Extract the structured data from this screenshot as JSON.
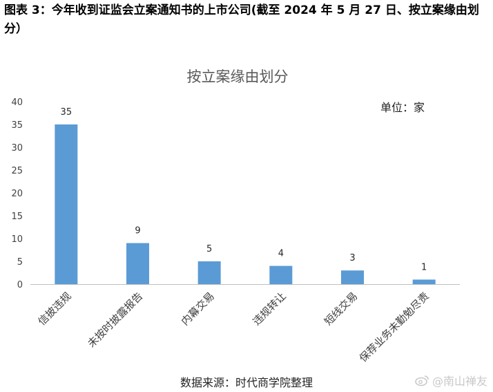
{
  "figure": {
    "title": "图表 3：今年收到证监会立案通知书的上市公司(截至 2024 年 5 月 27 日、按立案缘由划分）",
    "source": "数据来源：时代商学院整理",
    "watermark": "@南山禅友"
  },
  "chart_data": {
    "type": "bar",
    "title": "按立案缘由划分",
    "unit_note": "单位：家",
    "categories": [
      "信披违规",
      "未按时披露报告",
      "内幕交易",
      "违规转让",
      "短线交易",
      "保荐业务未勤勉尽责"
    ],
    "values": [
      35,
      9,
      5,
      4,
      3,
      1
    ],
    "data_labels": [
      "35",
      "9",
      "5",
      "4",
      "3",
      "1"
    ],
    "ylim": [
      0,
      40
    ],
    "yticks": [
      0,
      5,
      10,
      15,
      20,
      25,
      30,
      35,
      40
    ],
    "grid": false,
    "bar_color": "#5b9bd5",
    "xlabel": "",
    "ylabel": ""
  }
}
